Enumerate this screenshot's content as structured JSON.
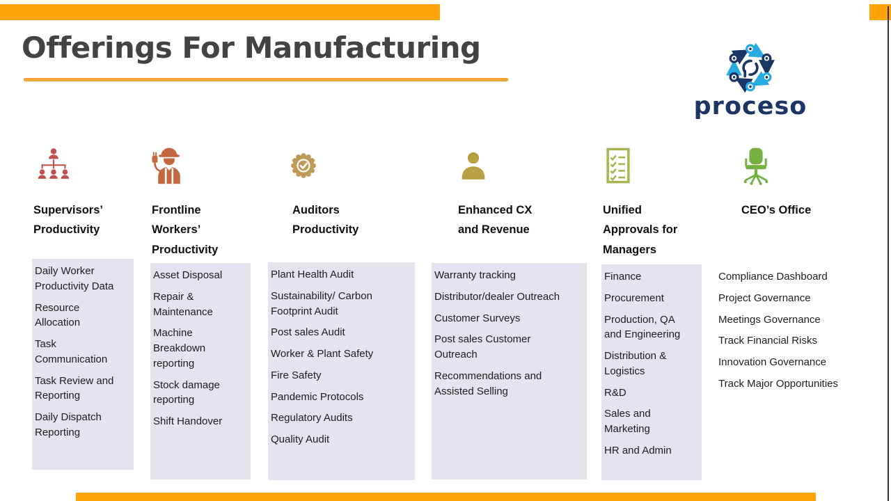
{
  "slide": {
    "title": "Offerings For Manufacturing",
    "logo": {
      "wordmark": "proceso"
    },
    "theme": {
      "accent_orange": "#FFA40B",
      "underline_orange": "#F2A438",
      "panel_background": "#E6E2EE",
      "title_color": "#414345",
      "heading_color": "#101010",
      "list_text_color": "#1D1D1D",
      "logo_navy": "#1B3664",
      "logo_blue": "#29ABE2",
      "edge_line_color": "#2F2F2F"
    },
    "columns": [
      {
        "heading": "Supervisors’\nProductivity",
        "icon": "org-chart-icon",
        "icon_color": "#C0504D",
        "items": [
          "Daily Worker Productivity Data",
          "Resource Allocation",
          "Task Communication",
          "Task Review and Reporting",
          "Daily Dispatch Reporting"
        ]
      },
      {
        "heading": "Frontline\nWorkers’\nProductivity",
        "icon": "construction-worker-icon",
        "icon_color": "#C4663E",
        "items": [
          "Asset Disposal",
          "Repair & Maintenance",
          "Machine Breakdown reporting",
          "Stock damage reporting",
          "Shift Handover"
        ]
      },
      {
        "heading": "Auditors\nProductivity",
        "icon": "badge-check-icon",
        "icon_color": "#BE9B56",
        "items": [
          "Plant Health Audit",
          "Sustainability/ Carbon Footprint Audit",
          "Post sales Audit",
          "Worker & Plant Safety",
          "Fire Safety",
          "Pandemic Protocols",
          "Regulatory Audits",
          "Quality Audit"
        ]
      },
      {
        "heading": "Enhanced CX\nand Revenue",
        "icon": "person-icon",
        "icon_color": "#B6A042",
        "items": [
          "Warranty tracking",
          "Distributor/dealer Outreach",
          "Customer Surveys",
          "Post sales Customer Outreach",
          "Recommendations and Assisted Selling"
        ]
      },
      {
        "heading": "Unified\nApprovals for\nManagers",
        "icon": "checklist-icon",
        "icon_color": "#A9B44E",
        "items": [
          "Finance",
          "Procurement",
          "Production, QA and Engineering",
          "Distribution & Logistics",
          "R&D",
          "Sales and Marketing",
          "HR and Admin"
        ]
      },
      {
        "heading": "CEO’s Office",
        "icon": "office-chair-icon",
        "icon_color": "#76B043",
        "items": [
          "Compliance Dashboard",
          "Project Governance",
          "Meetings Governance",
          "Track Financial Risks",
          "Innovation Governance",
          "Track Major Opportunities"
        ]
      }
    ]
  }
}
